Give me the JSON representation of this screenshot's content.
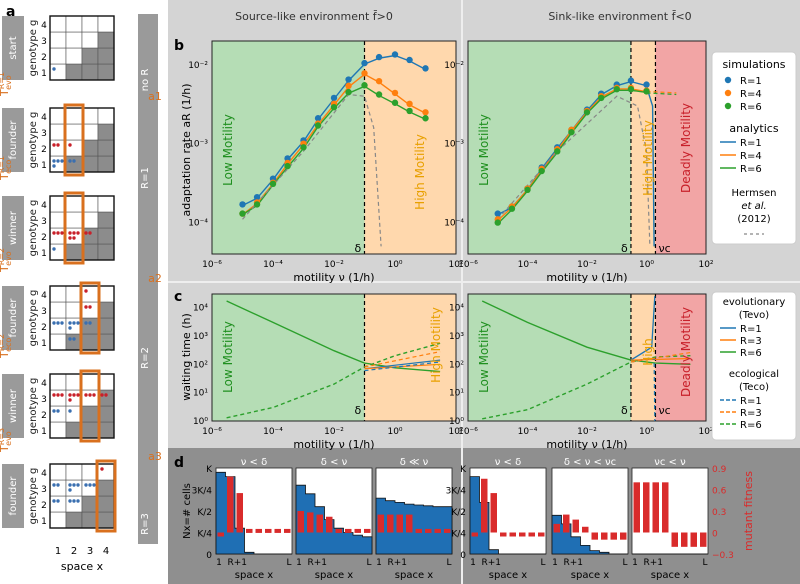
{
  "panels": {
    "a": "a",
    "b": "b",
    "c": "c",
    "d": "d"
  },
  "headers": {
    "source": "Source-like environment f̄>0",
    "sink": "Sink-like environment f̄<0"
  },
  "panel_a": {
    "xlabel": "space x",
    "ylabel": "genotype g",
    "x_ticks": [
      "1",
      "2",
      "3",
      "4"
    ],
    "y_ticks": [
      "1",
      "2",
      "3",
      "4"
    ],
    "stages": [
      "start",
      "founder",
      "winner",
      "founder",
      "winner",
      "founder"
    ],
    "rail_labels": [
      "no R",
      "R=1",
      "R=2",
      "R=3"
    ],
    "step_labels": [
      "a1",
      "a2",
      "a3"
    ],
    "t_labels": [
      {
        "main": "T",
        "sup": "R=1",
        "sub": "evo"
      },
      {
        "main": "T",
        "sup": "R=1",
        "sub": "eco"
      },
      {
        "main": "T",
        "sup": "R=2",
        "sub": "evo"
      },
      {
        "main": "T",
        "sup": "R=2",
        "sub": "eco"
      },
      {
        "main": "T",
        "sup": "R=3",
        "sub": "evo"
      }
    ],
    "colors": {
      "founder_orange": "#d9701e",
      "blue_dot": "#3a6fb0",
      "red_dot": "#c8202a",
      "grey_cell": "#8c8c8c"
    }
  },
  "panel_b": {
    "ylabel": "adaptation rate  aR (1/h)",
    "xlabel": "motility ν (1/h)",
    "x_ticks": [
      "10⁻⁶",
      "10⁻⁴",
      "10⁻²",
      "10⁰",
      "10²"
    ],
    "y_ticks": [
      "10⁻⁴",
      "10⁻³",
      "10⁻²"
    ],
    "regions": {
      "low": "Low Motility",
      "high": "High Motility",
      "deadly": "Deadly Motility"
    },
    "delta": "δ",
    "nuc": "νc",
    "legend": {
      "sim_title": "simulations",
      "ana_title": "analytics",
      "r_labels": [
        "R=1",
        "R=4",
        "R=6"
      ],
      "herm_line1": "Hermsen",
      "herm_line2": "et al.",
      "herm_line3": "(2012)"
    }
  },
  "panel_c": {
    "ylabel": "waiting time (h)",
    "xlabel": "motility ν (1/h)",
    "y_ticks": [
      "10⁰",
      "10¹",
      "10²",
      "10³",
      "10⁴"
    ],
    "x_ticks": [
      "10⁻⁶",
      "10⁻⁴",
      "10⁻²",
      "10⁰",
      "10²"
    ],
    "high_short": "High",
    "legend": {
      "evo_title": "evolutionary",
      "evo_sub": "(Tevo)",
      "eco_title": "ecological",
      "eco_sub": "(Teco)",
      "r_labels": [
        "R=1",
        "R=3",
        "R=6"
      ]
    }
  },
  "panel_d": {
    "ylabel": "Nx=# cells",
    "y2label": "mutant fitness",
    "xlabel": "space x",
    "y_ticks": [
      "K",
      "3K/4",
      "K/2",
      "K/4",
      "0"
    ],
    "y2_ticks": [
      "0.9",
      "0.6",
      "0.3",
      "0",
      "−0.3"
    ],
    "x_ticks": [
      "1",
      "R+1",
      "L"
    ],
    "titles": [
      "ν < δ",
      "δ < ν",
      "δ ≪ ν",
      "ν < δ",
      "δ < ν < νc",
      "νc < ν"
    ]
  },
  "chart_data": [
    {
      "type": "scatter",
      "id": "b-source",
      "title": "Source-like environment f̄>0",
      "xlabel": "motility ν (1/h)",
      "ylabel": "adaptation rate aR (1/h)",
      "xscale": "log",
      "yscale": "log",
      "xlim": [
        1e-06,
        100
      ],
      "ylim": [
        4e-05,
        0.02
      ],
      "delta": 0.1,
      "series": [
        {
          "name": "R=1",
          "color": "#1f77b4",
          "x": [
            1e-05,
            3e-05,
            0.0001,
            0.0003,
            0.001,
            0.003,
            0.01,
            0.03,
            0.1,
            0.3,
            1,
            3,
            10
          ],
          "y": [
            0.00017,
            0.00021,
            0.00036,
            0.00065,
            0.0011,
            0.0021,
            0.0038,
            0.0065,
            0.0105,
            0.0125,
            0.0135,
            0.0115,
            0.009
          ]
        },
        {
          "name": "R=4",
          "color": "#ff7f0e",
          "x": [
            1e-05,
            3e-05,
            0.0001,
            0.0003,
            0.001,
            0.003,
            0.01,
            0.03,
            0.1,
            0.3,
            1,
            3,
            10
          ],
          "y": [
            0.00013,
            0.00018,
            0.00032,
            0.00057,
            0.001,
            0.0018,
            0.0032,
            0.0054,
            0.0078,
            0.0062,
            0.0044,
            0.0032,
            0.0025
          ]
        },
        {
          "name": "R=6",
          "color": "#2ca02c",
          "x": [
            1e-05,
            3e-05,
            0.0001,
            0.0003,
            0.001,
            0.003,
            0.01,
            0.03,
            0.1,
            0.3,
            1,
            3,
            10
          ],
          "y": [
            0.00013,
            0.00017,
            0.00031,
            0.00052,
            0.0009,
            0.0017,
            0.0029,
            0.0045,
            0.0055,
            0.0042,
            0.0033,
            0.0026,
            0.0021
          ]
        }
      ]
    },
    {
      "type": "scatter",
      "id": "b-sink",
      "title": "Sink-like environment f̄<0",
      "xlabel": "motility ν (1/h)",
      "ylabel": "adaptation rate aR (1/h)",
      "xscale": "log",
      "yscale": "log",
      "xlim": [
        1e-06,
        100
      ],
      "ylim": [
        4e-05,
        0.02
      ],
      "delta": 0.3,
      "nu_c": 2,
      "series": [
        {
          "name": "R=1",
          "color": "#1f77b4",
          "x": [
            1e-05,
            3e-05,
            0.0001,
            0.0003,
            0.001,
            0.003,
            0.01,
            0.03,
            0.1,
            0.3,
            1
          ],
          "y": [
            0.00013,
            0.00016,
            0.00027,
            0.0005,
            0.0009,
            0.0015,
            0.0027,
            0.0043,
            0.0056,
            0.0063,
            0.0056
          ]
        },
        {
          "name": "R=4",
          "color": "#ff7f0e",
          "x": [
            1e-05,
            3e-05,
            0.0001,
            0.0003,
            0.001,
            0.003,
            0.01,
            0.03,
            0.1,
            0.3,
            1
          ],
          "y": [
            0.00011,
            0.00016,
            0.00027,
            0.00048,
            0.00085,
            0.0015,
            0.0026,
            0.004,
            0.0051,
            0.0051,
            0.0047
          ]
        },
        {
          "name": "R=6",
          "color": "#2ca02c",
          "x": [
            1e-05,
            3e-05,
            0.0001,
            0.0003,
            0.001,
            0.003,
            0.01,
            0.03,
            0.1,
            0.3,
            1
          ],
          "y": [
            0.0001,
            0.00015,
            0.00026,
            0.00045,
            0.0008,
            0.0014,
            0.0025,
            0.0038,
            0.0049,
            0.0049,
            0.0046
          ]
        }
      ]
    },
    {
      "type": "line",
      "id": "c-source",
      "xlabel": "motility ν (1/h)",
      "ylabel": "waiting time (h)",
      "xscale": "log",
      "yscale": "log",
      "xlim": [
        1e-06,
        100
      ],
      "ylim": [
        1,
        30000
      ],
      "delta": 0.1,
      "series": [
        {
          "name": "R=6 evolutionary (Tevo)",
          "color": "#2ca02c",
          "dashed": false,
          "x": [
            3e-06,
            0.0001,
            0.01,
            0.1,
            1,
            30
          ],
          "y": [
            17000,
            3000,
            300,
            110,
            75,
            55
          ]
        },
        {
          "name": "R=6 ecological (Teco)",
          "color": "#2ca02c",
          "dashed": true,
          "x": [
            3e-06,
            0.0001,
            0.01,
            0.1,
            1,
            30
          ],
          "y": [
            1.3,
            3,
            20,
            80,
            200,
            550
          ]
        }
      ]
    },
    {
      "type": "line",
      "id": "c-sink",
      "xlabel": "motility ν (1/h)",
      "ylabel": "waiting time (h)",
      "xscale": "log",
      "yscale": "log",
      "xlim": [
        1e-06,
        100
      ],
      "ylim": [
        1,
        30000
      ],
      "delta": 0.3,
      "nu_c": 2,
      "series": [
        {
          "name": "R=6 evolutionary (Tevo)",
          "color": "#2ca02c",
          "dashed": false,
          "x": [
            3e-06,
            0.0001,
            0.01,
            0.3,
            2,
            30
          ],
          "y": [
            17000,
            3000,
            400,
            140,
            110,
            100
          ]
        },
        {
          "name": "R=6 ecological (Teco)",
          "color": "#2ca02c",
          "dashed": true,
          "x": [
            3e-06,
            0.0001,
            0.01,
            0.3,
            2,
            30
          ],
          "y": [
            1.2,
            2.5,
            20,
            120,
            180,
            200
          ]
        }
      ]
    },
    {
      "type": "bar",
      "id": "d-fitness",
      "y2label": "mutant fitness",
      "y2lim": [
        -0.3,
        0.9
      ],
      "panels": [
        {
          "title": "ν < δ",
          "values": [
            0,
            0.78,
            0.55,
            0.05,
            0.05,
            0.05,
            0.05,
            0.05
          ],
          "nx": [
            0.95,
            0.9,
            0.3,
            0.02,
            0,
            0,
            0,
            0
          ]
        },
        {
          "title": "δ < ν",
          "values": [
            0.3,
            0.28,
            0.25,
            0.22,
            0.05,
            0.05,
            0.05,
            0.05
          ],
          "nx": [
            0.8,
            0.7,
            0.55,
            0.4,
            0.3,
            0.25,
            0.22,
            0.2
          ]
        },
        {
          "title": "δ ≪ ν",
          "values": [
            0.25,
            0.25,
            0.25,
            0.25,
            0.05,
            0.05,
            0.05,
            0.05
          ],
          "nx": [
            0.65,
            0.62,
            0.6,
            0.58,
            0.57,
            0.56,
            0.55,
            0.55
          ]
        },
        {
          "title": "ν < δ",
          "values": [
            0,
            0.75,
            0.55,
            -0.05,
            -0.05,
            -0.05,
            -0.05,
            -0.05
          ],
          "nx": [
            0.9,
            0.6,
            0.05,
            0,
            0,
            0,
            0,
            0
          ]
        },
        {
          "title": "δ < ν < νc",
          "values": [
            0.12,
            0.25,
            0.18,
            0.08,
            -0.1,
            -0.1,
            -0.1,
            -0.1
          ],
          "nx": [
            0.45,
            0.35,
            0.2,
            0.1,
            0.04,
            0.02,
            0,
            0
          ]
        },
        {
          "title": "νc < ν",
          "values": [
            0.7,
            0.7,
            0.7,
            0.7,
            -0.2,
            -0.2,
            -0.2,
            -0.2
          ],
          "nx": [
            0,
            0,
            0,
            0,
            0,
            0,
            0,
            0
          ]
        }
      ]
    }
  ]
}
